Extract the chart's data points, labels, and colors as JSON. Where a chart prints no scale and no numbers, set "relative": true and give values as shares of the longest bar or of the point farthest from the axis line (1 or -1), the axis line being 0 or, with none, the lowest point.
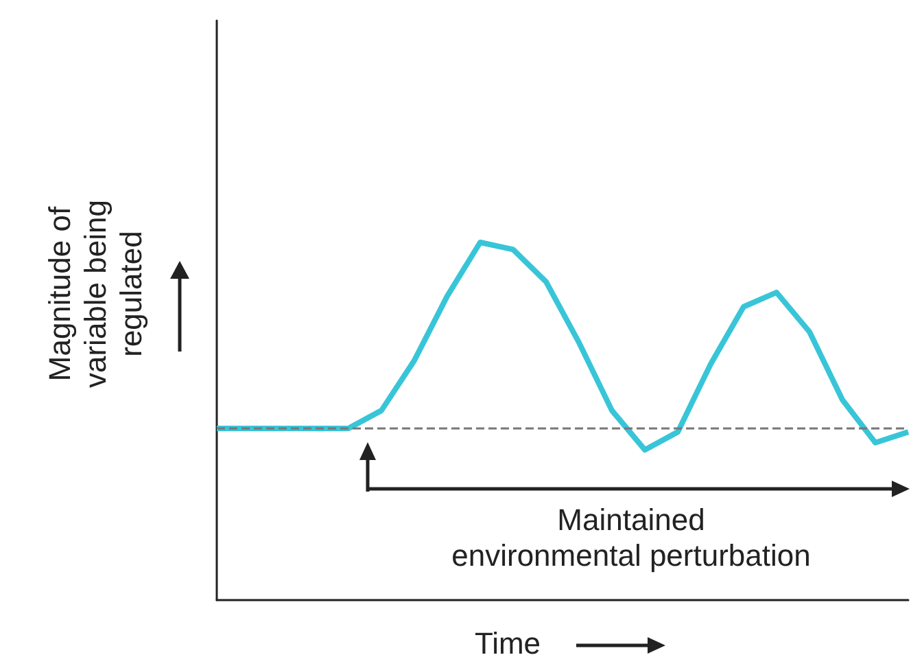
{
  "chart_data": {
    "type": "line",
    "relative": true,
    "xlabel": "Time",
    "ylabel": "Magnitude of\nvariable being\nregulated",
    "annotations": [
      "Maintained\nenvironmental perturbation"
    ],
    "categories": [
      null,
      null,
      null,
      null,
      null,
      null,
      null,
      null,
      null,
      null,
      null,
      null,
      null,
      null,
      null,
      null,
      null,
      null,
      null,
      null,
      null,
      null
    ],
    "series": [
      {
        "color": "#38c5d8",
        "values": [
          0.48,
          0.48,
          0.48,
          0.48,
          0.48,
          0.53,
          0.67,
          0.85,
          1.0,
          0.98,
          0.89,
          0.72,
          0.53,
          0.42,
          0.47,
          0.66,
          0.82,
          0.86,
          0.75,
          0.56,
          0.44,
          0.47
        ]
      }
    ],
    "ref_lines": [
      {
        "axis": "y",
        "value": 0.48,
        "color": "#777777",
        "line_style": "dashed"
      }
    ],
    "marker": "none"
  }
}
